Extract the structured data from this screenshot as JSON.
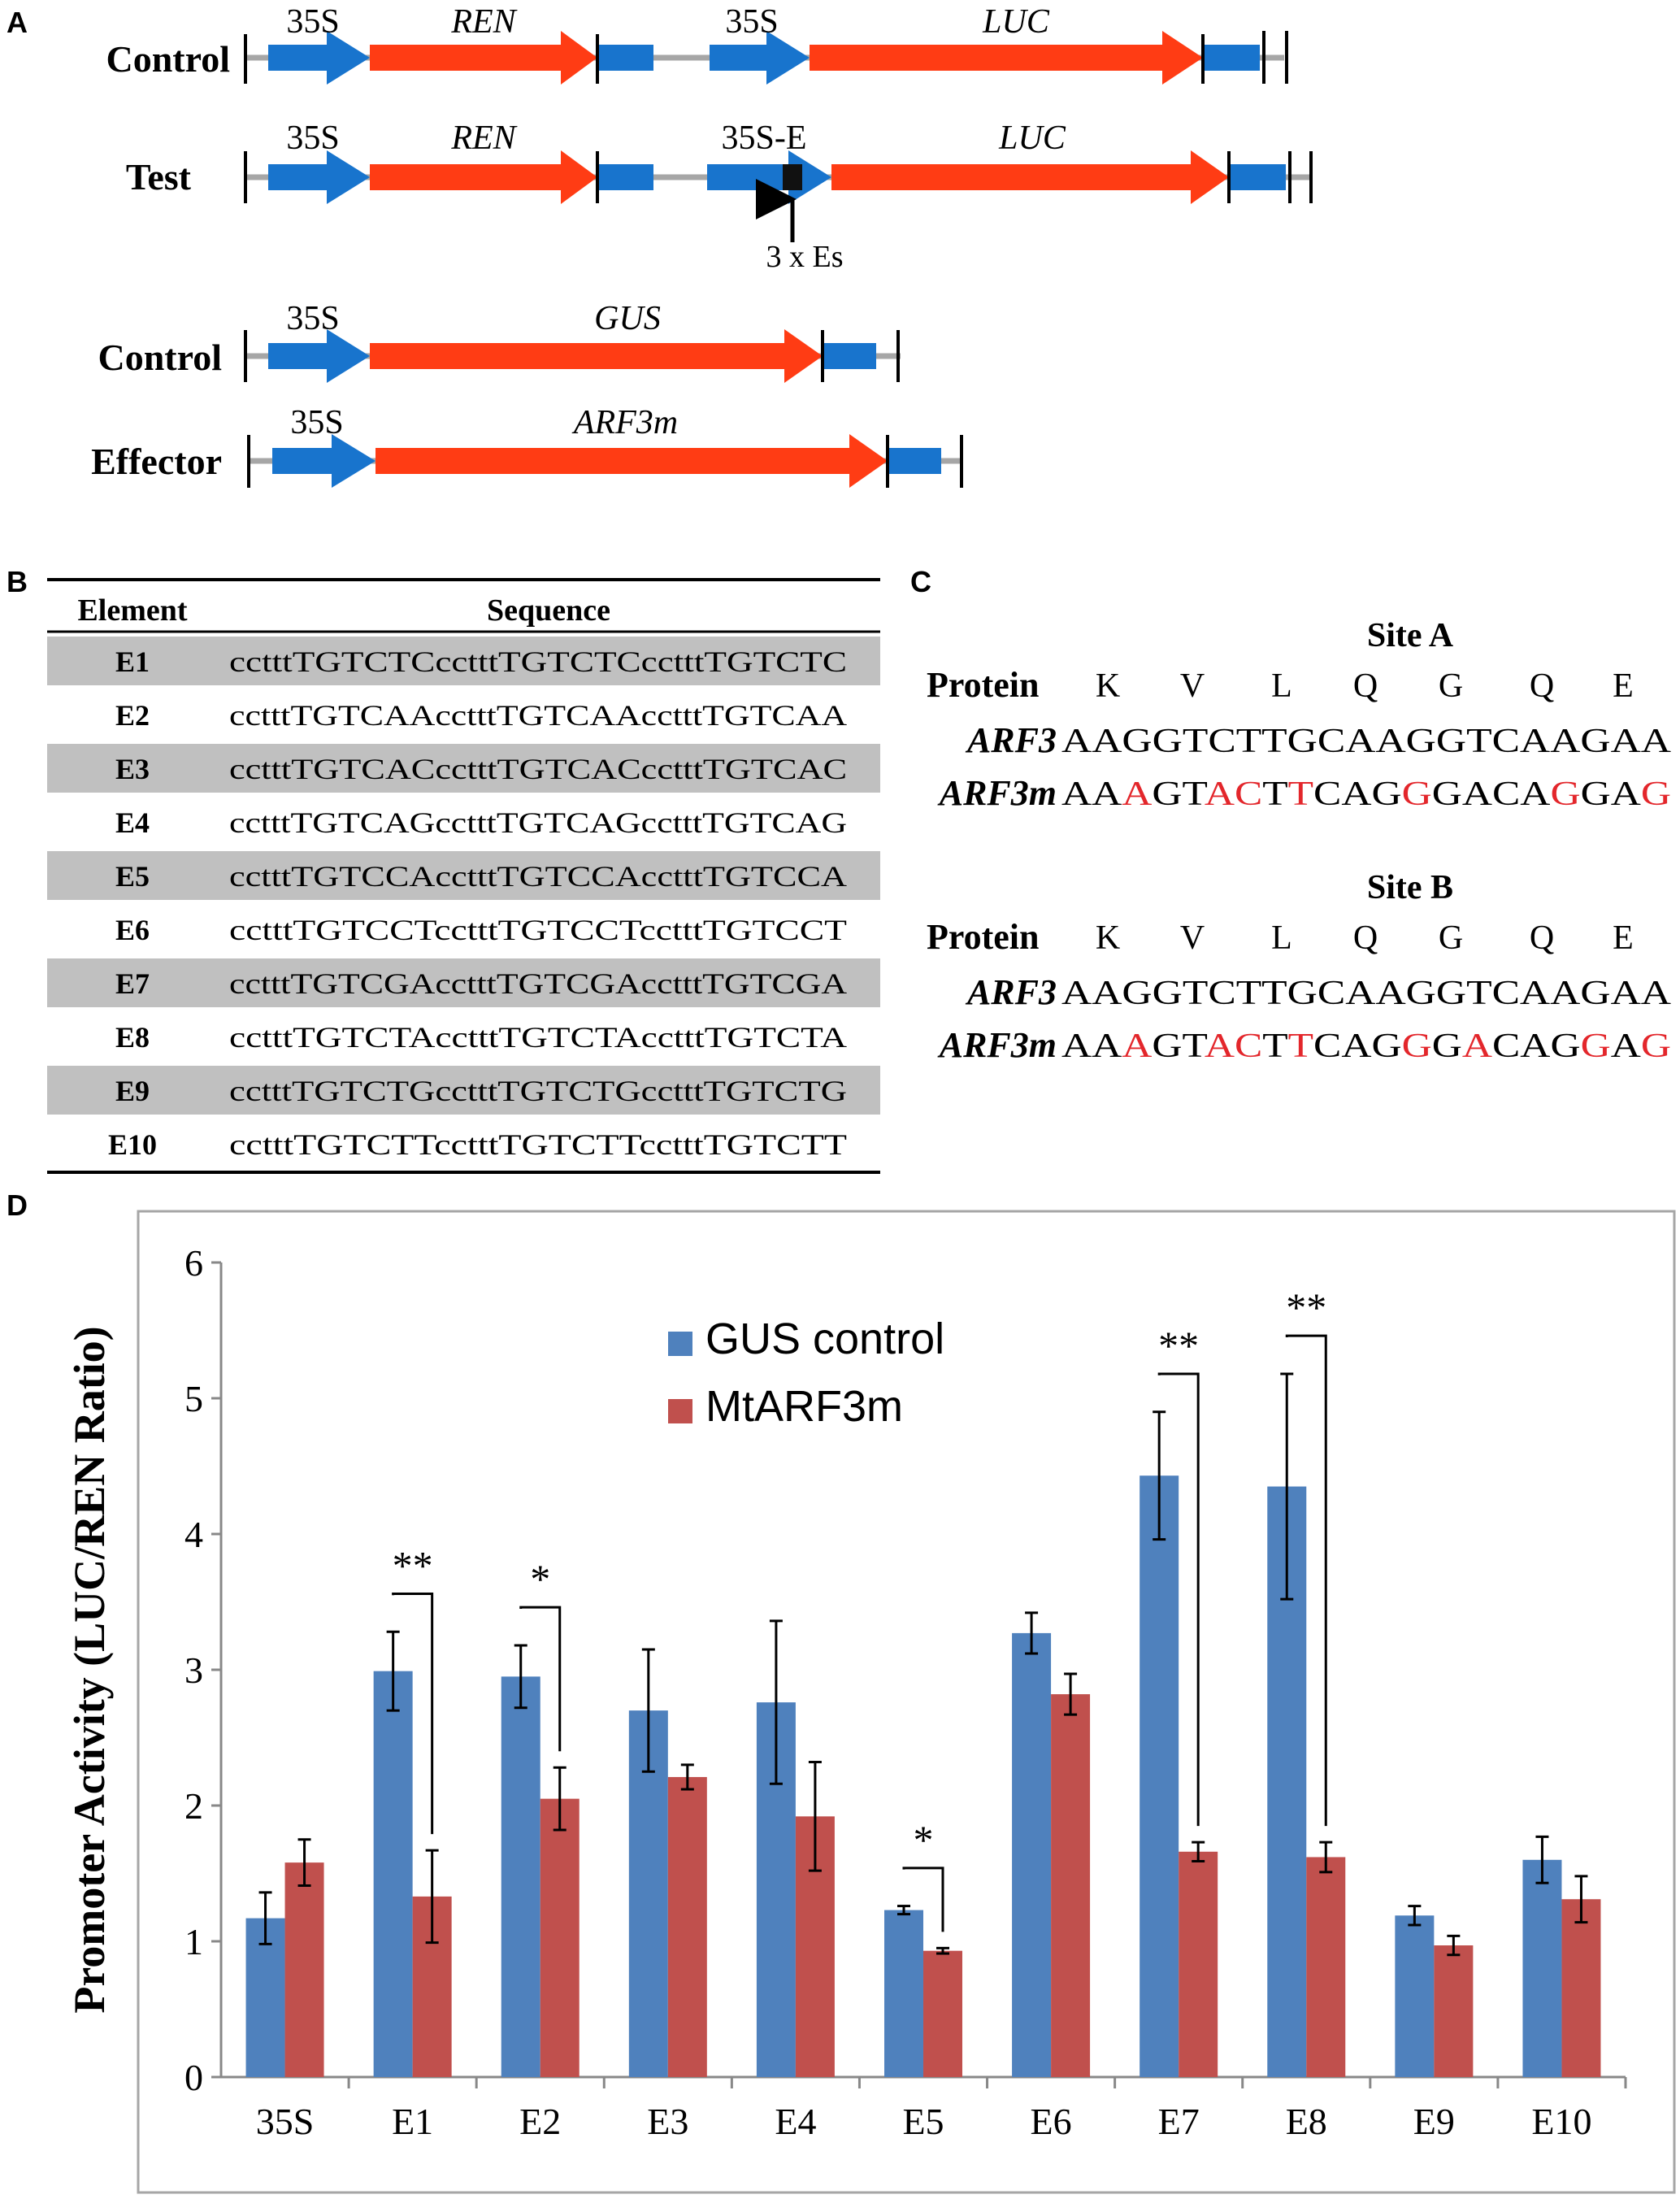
{
  "colors": {
    "blue_arrow": "#1874CD",
    "red_arrow": "#FF3C14",
    "line_grey": "#A6A6A6",
    "row_shade": "#C0C0C0",
    "bar_gus": "#4F81BD",
    "bar_arf": "#C0504D",
    "mutation_red": "#E3262B",
    "sequence_black": "#000000"
  },
  "panelA": {
    "letter": "A",
    "constructs": [
      {
        "row_label": "Control",
        "promoter1": "35S",
        "gene1": "REN",
        "promoter2": "35S",
        "gene2": "LUC"
      },
      {
        "row_label": "Test",
        "promoter1": "35S",
        "gene1": "REN",
        "promoter2": "35S-E",
        "gene2": "LUC",
        "insert_note": "3 x Es"
      },
      {
        "row_label": "Control",
        "promoter1": "35S",
        "gene1": "GUS"
      },
      {
        "row_label": "Effector",
        "promoter1": "35S",
        "gene1": "ARF3m"
      }
    ]
  },
  "panelB": {
    "letter": "B",
    "headers": [
      "Element",
      "Sequence"
    ],
    "rows": [
      {
        "element": "E1",
        "sequence": "cctttTGTCTCcctttTGTCTCcctttTGTCTC"
      },
      {
        "element": "E2",
        "sequence": "cctttTGTCAAcctttTGTCAAcctttTGTCAA"
      },
      {
        "element": "E3",
        "sequence": "cctttTGTCACcctttTGTCACcctttTGTCAC"
      },
      {
        "element": "E4",
        "sequence": "cctttTGTCAGcctttTGTCAGcctttTGTCAG"
      },
      {
        "element": "E5",
        "sequence": "cctttTGTCCAcctttTGTCCAcctttTGTCCA"
      },
      {
        "element": "E6",
        "sequence": "cctttTGTCCTcctttTGTCCTcctttTGTCCT"
      },
      {
        "element": "E7",
        "sequence": "cctttTGTCGAcctttTGTCGAcctttTGTCGA"
      },
      {
        "element": "E8",
        "sequence": "cctttTGTCTAcctttTGTCTAcctttTGTCTA"
      },
      {
        "element": "E9",
        "sequence": "cctttTGTCTGcctttTGTCTGcctttTGTCTG"
      },
      {
        "element": "E10",
        "sequence": "cctttTGTCTTcctttTGTCTTcctttTGTCTT"
      }
    ]
  },
  "panelC": {
    "letter": "C",
    "protein_label": "Protein",
    "sites": [
      {
        "title": "Site A",
        "amino_acids": [
          "K",
          "V",
          "L",
          "Q",
          "G",
          "Q",
          "E"
        ],
        "wt_label": "ARF3",
        "wt_seq": "AAGGTCTTGCAAGGTCAAGAA",
        "mut_label": "ARF3m",
        "mut_seq": "AAAGTACTTCAGGGACAGGAG",
        "mut_red_positions": [
          2,
          5,
          6,
          8,
          12,
          17,
          20
        ]
      },
      {
        "title": "Site B",
        "amino_acids": [
          "K",
          "V",
          "L",
          "Q",
          "G",
          "Q",
          "E"
        ],
        "wt_label": "ARF3",
        "wt_seq": "AAGGTCTTGCAAGGTCAAGAA",
        "mut_label": "ARF3m",
        "mut_seq": "AAAGTACTTCAGGGACAGGAG",
        "mut_red_positions": [
          2,
          5,
          6,
          8,
          12,
          14,
          18,
          20
        ]
      }
    ]
  },
  "panelD": {
    "letter": "D"
  },
  "chart_data": {
    "type": "bar",
    "title": "",
    "xlabel": "",
    "ylabel": "Promoter Activity (LUC/REN Ratio)",
    "ylim": [
      0,
      6
    ],
    "yticks": [
      "0",
      "1",
      "2",
      "3",
      "4",
      "5",
      "6"
    ],
    "grid": false,
    "legend_position": "top-center",
    "categories": [
      "35S",
      "E1",
      "E2",
      "E3",
      "E4",
      "E5",
      "E6",
      "E7",
      "E8",
      "E9",
      "E10"
    ],
    "series": [
      {
        "name": "GUS control",
        "values": [
          1.17,
          2.99,
          2.95,
          2.7,
          2.76,
          1.23,
          3.27,
          4.43,
          4.35,
          1.19,
          1.6
        ],
        "error": [
          0.19,
          0.29,
          0.23,
          0.45,
          0.6,
          0.03,
          0.15,
          0.47,
          0.83,
          0.07,
          0.17
        ]
      },
      {
        "name": "MtARF3m",
        "values": [
          1.58,
          1.33,
          2.05,
          2.21,
          1.92,
          0.93,
          2.82,
          1.66,
          1.62,
          0.97,
          1.31
        ],
        "error": [
          0.17,
          0.34,
          0.23,
          0.09,
          0.4,
          0.02,
          0.15,
          0.07,
          0.11,
          0.07,
          0.17
        ]
      }
    ],
    "significance": [
      {
        "category": "E1",
        "label": "**"
      },
      {
        "category": "E2",
        "label": "*"
      },
      {
        "category": "E5",
        "label": "*"
      },
      {
        "category": "E7",
        "label": "**"
      },
      {
        "category": "E8",
        "label": "**"
      }
    ]
  }
}
